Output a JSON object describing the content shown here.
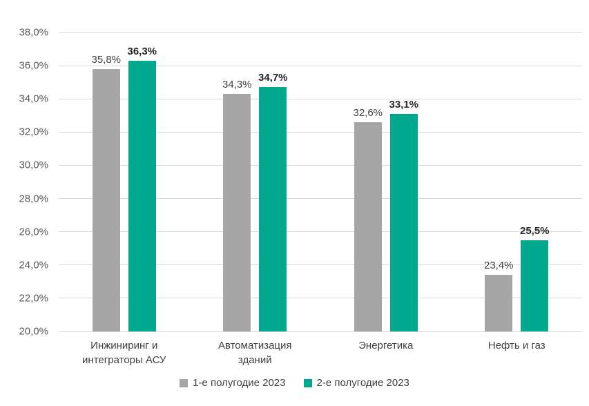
{
  "chart_data": {
    "type": "bar",
    "title": "",
    "xlabel": "",
    "ylabel": "",
    "ylim": [
      20,
      38
    ],
    "grid": "horizontal",
    "legend_position": "bottom",
    "yticks": [
      "38,0%",
      "36,0%",
      "34,0%",
      "32,0%",
      "30,0%",
      "28,0%",
      "26,0%",
      "24,0%",
      "22,0%",
      "20,0%"
    ],
    "categories": [
      "Инжиниринг и\nинтеграторы АСУ",
      "Автоматизация\nзданий",
      "Энергетика",
      "Нефть и газ"
    ],
    "series": [
      {
        "name": "1-е полугодие 2023",
        "color": "#a6a6a6",
        "values": [
          35.8,
          34.3,
          32.6,
          23.4
        ],
        "labels": [
          "35,8%",
          "34,3%",
          "32,6%",
          "23,4%"
        ]
      },
      {
        "name": "2-е полугодие 2023",
        "color": "#00a88e",
        "values": [
          36.3,
          34.7,
          33.1,
          25.5
        ],
        "labels": [
          "36,3%",
          "34,7%",
          "33,1%",
          "25,5%"
        ]
      }
    ]
  }
}
